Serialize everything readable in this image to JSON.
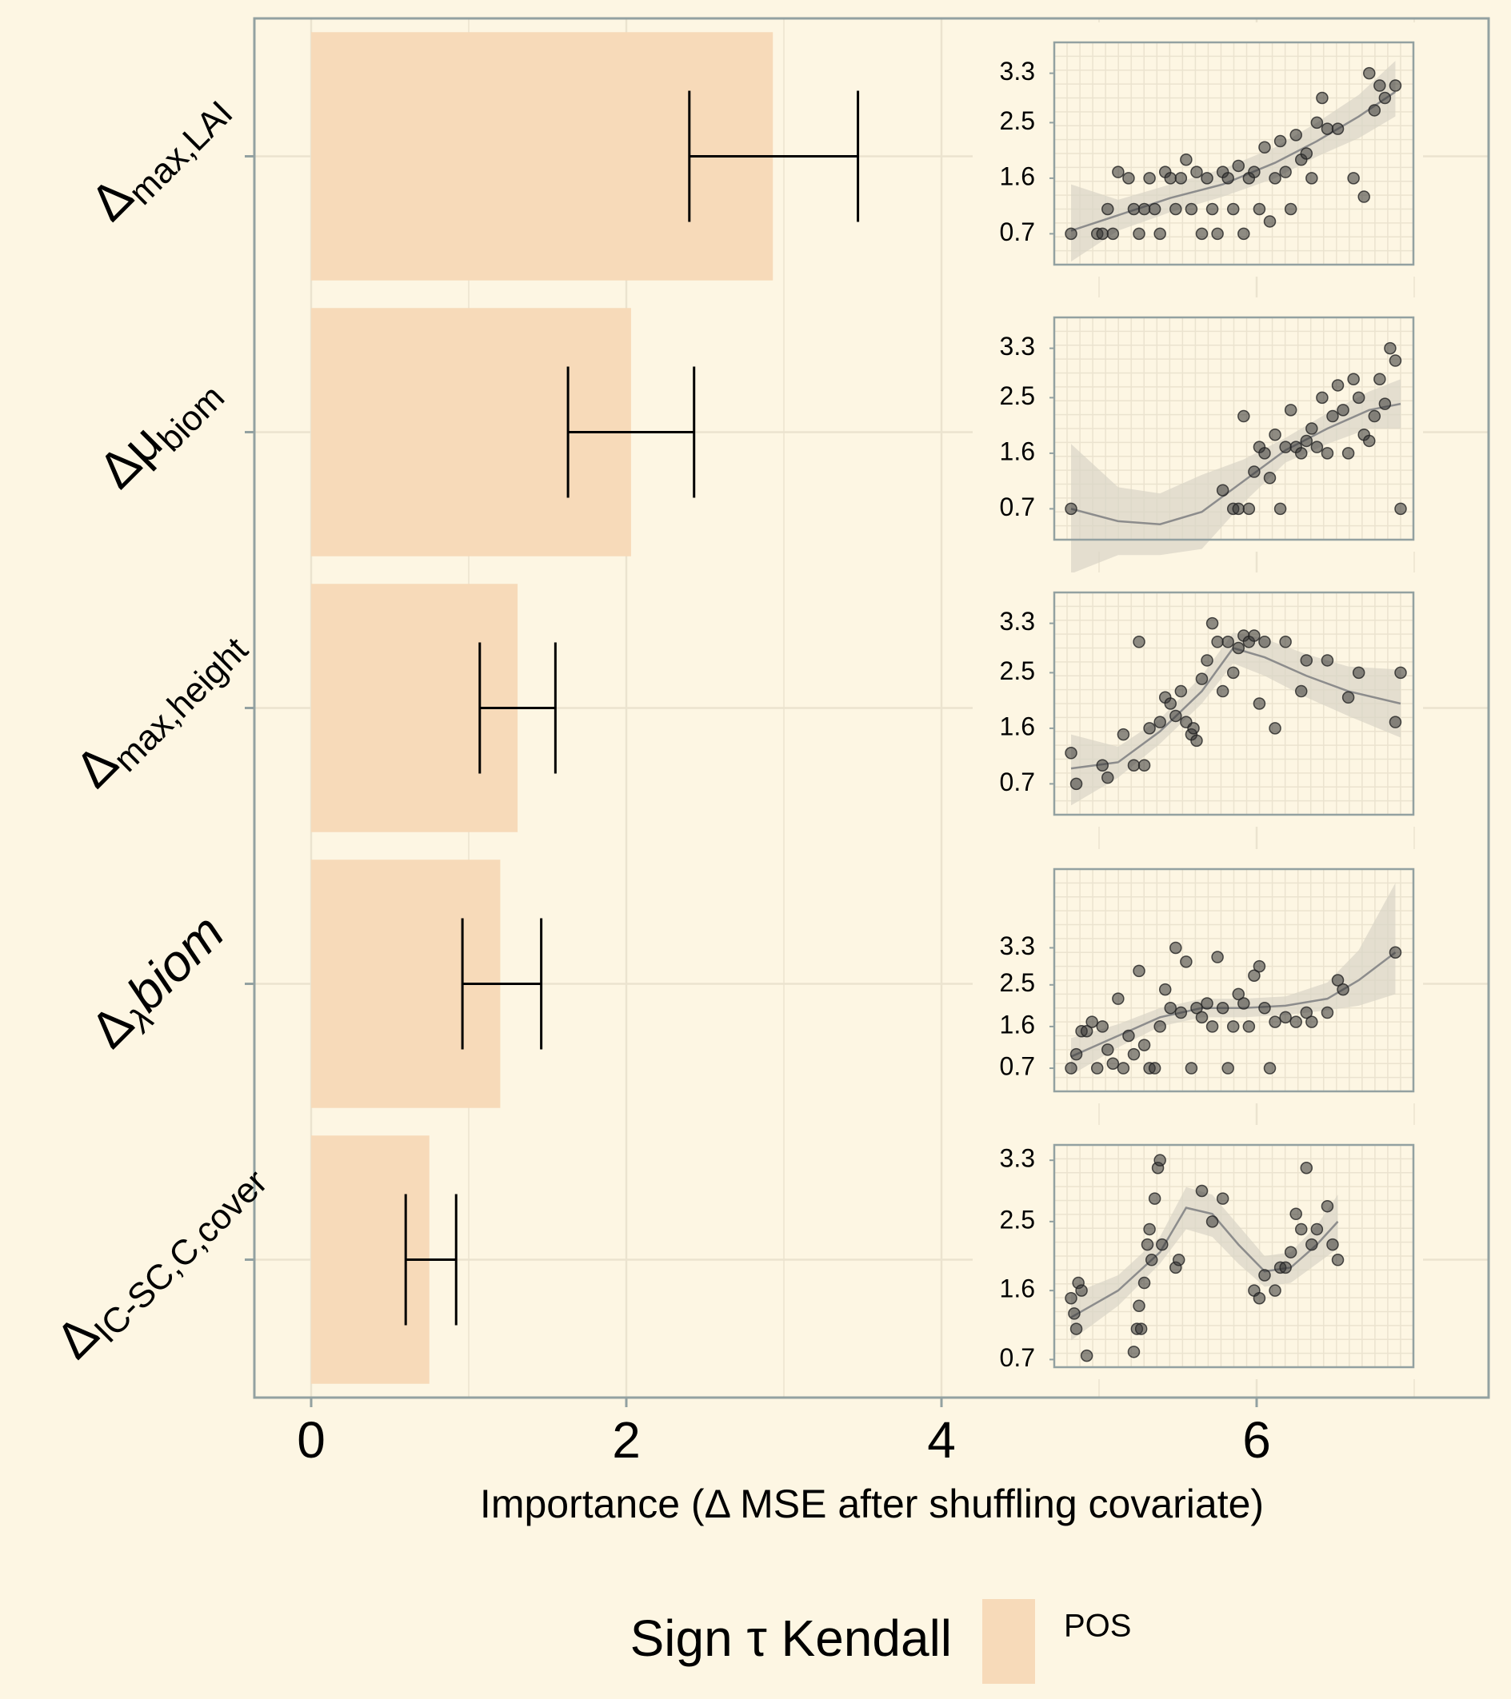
{
  "colors": {
    "background": "#fdf6e3",
    "bar_fill": "#f7dab9",
    "panel_border": "#93a1a1",
    "grid": "#ebe3cf",
    "errorbar": "#000000",
    "point": "#333333",
    "smooth_line": "#8c8c8c",
    "ribbon": "#d8d4c6"
  },
  "chart_data": {
    "type": "bar",
    "orientation": "horizontal",
    "xlabel": "Importance (Δ MSE after shuffling covariate)",
    "xlim": [
      0,
      7.2
    ],
    "x_ticks": [
      "0",
      "2",
      "4",
      "6"
    ],
    "grid": true,
    "categories": [
      {
        "base": "Δ",
        "sub": "max,LAI",
        "italic": false
      },
      {
        "base": "Δμ",
        "sub": "biom",
        "italic": false
      },
      {
        "base": "Δ",
        "sub": "max,height",
        "italic": false
      },
      {
        "base": "Δ",
        "sub": "λ",
        "after": "biom",
        "italic": true
      },
      {
        "base": "Δ",
        "sub": "IC-SC,C,cover",
        "italic": false
      }
    ],
    "values": [
      2.93,
      2.03,
      1.31,
      1.2,
      0.75
    ],
    "error_low": [
      2.4,
      1.63,
      1.07,
      0.96,
      0.6
    ],
    "error_high": [
      3.47,
      2.43,
      1.55,
      1.46,
      0.92
    ],
    "sign": [
      "POS",
      "POS",
      "POS",
      "POS",
      "POS"
    ],
    "legend": {
      "title": "Sign τ Kendall",
      "items": [
        "POS"
      ],
      "position": "bottom"
    }
  },
  "insets": [
    {
      "y_ticks": [
        "3.3",
        "2.5",
        "1.6",
        "0.7"
      ],
      "ylim": [
        0.2,
        3.8
      ],
      "points": [
        [
          4.75,
          0.7
        ],
        [
          5.0,
          0.7
        ],
        [
          5.05,
          0.7
        ],
        [
          5.1,
          1.1
        ],
        [
          5.15,
          0.7
        ],
        [
          5.2,
          1.7
        ],
        [
          5.3,
          1.6
        ],
        [
          5.35,
          1.1
        ],
        [
          5.4,
          0.7
        ],
        [
          5.45,
          1.1
        ],
        [
          5.5,
          1.6
        ],
        [
          5.55,
          1.1
        ],
        [
          5.6,
          0.7
        ],
        [
          5.65,
          1.7
        ],
        [
          5.7,
          1.6
        ],
        [
          5.75,
          1.1
        ],
        [
          5.8,
          1.6
        ],
        [
          5.85,
          1.9
        ],
        [
          5.9,
          1.1
        ],
        [
          5.95,
          1.7
        ],
        [
          6.0,
          0.7
        ],
        [
          6.05,
          1.6
        ],
        [
          6.1,
          1.1
        ],
        [
          6.15,
          0.7
        ],
        [
          6.2,
          1.7
        ],
        [
          6.25,
          1.6
        ],
        [
          6.3,
          1.1
        ],
        [
          6.35,
          1.8
        ],
        [
          6.4,
          0.7
        ],
        [
          6.45,
          1.6
        ],
        [
          6.5,
          1.7
        ],
        [
          6.55,
          1.1
        ],
        [
          6.6,
          2.1
        ],
        [
          6.65,
          0.9
        ],
        [
          6.7,
          1.6
        ],
        [
          6.75,
          2.2
        ],
        [
          6.8,
          1.7
        ],
        [
          6.85,
          1.1
        ],
        [
          6.9,
          2.3
        ],
        [
          6.95,
          1.9
        ],
        [
          7.0,
          2.0
        ],
        [
          7.05,
          1.6
        ],
        [
          7.1,
          2.5
        ],
        [
          7.15,
          2.9
        ],
        [
          7.2,
          2.4
        ],
        [
          7.3,
          2.4
        ],
        [
          7.45,
          1.6
        ],
        [
          7.55,
          1.3
        ],
        [
          7.6,
          3.3
        ],
        [
          7.65,
          2.7
        ],
        [
          7.7,
          3.1
        ],
        [
          7.75,
          2.9
        ],
        [
          7.85,
          3.1
        ]
      ],
      "curve": [
        [
          4.75,
          0.75
        ],
        [
          5.2,
          1.0
        ],
        [
          5.7,
          1.28
        ],
        [
          6.2,
          1.5
        ],
        [
          6.7,
          1.85
        ],
        [
          7.1,
          2.2
        ],
        [
          7.5,
          2.6
        ],
        [
          7.85,
          3.0
        ]
      ],
      "band": [
        [
          4.75,
          0.25,
          1.5
        ],
        [
          5.2,
          0.75,
          1.25
        ],
        [
          5.7,
          1.05,
          1.5
        ],
        [
          6.2,
          1.3,
          1.75
        ],
        [
          6.7,
          1.6,
          2.1
        ],
        [
          7.1,
          1.95,
          2.5
        ],
        [
          7.5,
          2.25,
          2.95
        ],
        [
          7.85,
          2.6,
          3.5
        ]
      ]
    },
    {
      "y_ticks": [
        "3.3",
        "2.5",
        "1.6",
        "0.7"
      ],
      "ylim": [
        0.2,
        3.8
      ],
      "points": [
        [
          4.75,
          0.7
        ],
        [
          6.2,
          1.0
        ],
        [
          6.3,
          0.7
        ],
        [
          6.35,
          0.7
        ],
        [
          6.4,
          2.2
        ],
        [
          6.45,
          0.7
        ],
        [
          6.5,
          1.3
        ],
        [
          6.55,
          1.7
        ],
        [
          6.6,
          1.6
        ],
        [
          6.65,
          1.2
        ],
        [
          6.7,
          1.9
        ],
        [
          6.75,
          0.7
        ],
        [
          6.8,
          1.7
        ],
        [
          6.85,
          2.3
        ],
        [
          6.9,
          1.7
        ],
        [
          6.95,
          1.6
        ],
        [
          7.0,
          1.8
        ],
        [
          7.05,
          2.0
        ],
        [
          7.1,
          1.7
        ],
        [
          7.15,
          2.5
        ],
        [
          7.2,
          1.6
        ],
        [
          7.25,
          2.2
        ],
        [
          7.3,
          2.7
        ],
        [
          7.35,
          2.3
        ],
        [
          7.4,
          1.6
        ],
        [
          7.45,
          2.8
        ],
        [
          7.5,
          2.5
        ],
        [
          7.55,
          1.9
        ],
        [
          7.6,
          1.8
        ],
        [
          7.65,
          2.2
        ],
        [
          7.7,
          2.8
        ],
        [
          7.75,
          2.4
        ],
        [
          7.8,
          3.3
        ],
        [
          7.85,
          3.1
        ],
        [
          7.9,
          0.7
        ]
      ],
      "curve": [
        [
          4.75,
          0.7
        ],
        [
          5.2,
          0.5
        ],
        [
          5.6,
          0.45
        ],
        [
          6.0,
          0.65
        ],
        [
          6.4,
          1.15
        ],
        [
          6.8,
          1.65
        ],
        [
          7.2,
          2.0
        ],
        [
          7.6,
          2.3
        ],
        [
          7.9,
          2.4
        ]
      ],
      "band": [
        [
          4.75,
          -0.35,
          1.75
        ],
        [
          5.2,
          -0.05,
          1.05
        ],
        [
          5.6,
          -0.05,
          0.95
        ],
        [
          6.0,
          0.05,
          1.25
        ],
        [
          6.4,
          0.8,
          1.5
        ],
        [
          6.8,
          1.45,
          1.85
        ],
        [
          7.2,
          1.75,
          2.25
        ],
        [
          7.6,
          2.0,
          2.6
        ],
        [
          7.9,
          2.0,
          2.8
        ]
      ]
    },
    {
      "y_ticks": [
        "3.3",
        "2.5",
        "1.6",
        "0.7"
      ],
      "ylim": [
        0.2,
        3.8
      ],
      "points": [
        [
          4.75,
          1.2
        ],
        [
          4.8,
          0.7
        ],
        [
          5.05,
          1.0
        ],
        [
          5.1,
          0.8
        ],
        [
          5.25,
          1.5
        ],
        [
          5.35,
          1.0
        ],
        [
          5.4,
          3.0
        ],
        [
          5.45,
          1.0
        ],
        [
          5.5,
          1.6
        ],
        [
          5.6,
          1.7
        ],
        [
          5.65,
          2.1
        ],
        [
          5.7,
          2.0
        ],
        [
          5.75,
          1.8
        ],
        [
          5.8,
          2.2
        ],
        [
          5.85,
          1.7
        ],
        [
          5.9,
          1.5
        ],
        [
          5.92,
          1.6
        ],
        [
          5.95,
          1.4
        ],
        [
          6.0,
          2.4
        ],
        [
          6.05,
          2.7
        ],
        [
          6.1,
          3.3
        ],
        [
          6.15,
          3.0
        ],
        [
          6.2,
          2.2
        ],
        [
          6.25,
          3.0
        ],
        [
          6.3,
          2.5
        ],
        [
          6.35,
          2.9
        ],
        [
          6.4,
          3.1
        ],
        [
          6.45,
          3.0
        ],
        [
          6.5,
          3.1
        ],
        [
          6.55,
          2.0
        ],
        [
          6.6,
          3.0
        ],
        [
          6.7,
          1.6
        ],
        [
          6.8,
          3.0
        ],
        [
          6.95,
          2.2
        ],
        [
          7.0,
          2.7
        ],
        [
          7.2,
          2.7
        ],
        [
          7.4,
          2.1
        ],
        [
          7.5,
          2.5
        ],
        [
          7.85,
          1.7
        ],
        [
          7.9,
          2.5
        ]
      ],
      "curve": [
        [
          4.75,
          0.95
        ],
        [
          5.2,
          1.05
        ],
        [
          5.6,
          1.55
        ],
        [
          6.0,
          2.2
        ],
        [
          6.3,
          2.9
        ],
        [
          6.6,
          2.75
        ],
        [
          7.0,
          2.45
        ],
        [
          7.4,
          2.2
        ],
        [
          7.9,
          2.0
        ]
      ],
      "band": [
        [
          4.75,
          0.35,
          1.5
        ],
        [
          5.2,
          0.8,
          1.3
        ],
        [
          5.6,
          1.35,
          1.75
        ],
        [
          6.0,
          2.0,
          2.45
        ],
        [
          6.3,
          2.65,
          3.15
        ],
        [
          6.6,
          2.45,
          3.05
        ],
        [
          7.0,
          2.1,
          2.8
        ],
        [
          7.4,
          1.8,
          2.6
        ],
        [
          7.9,
          1.45,
          2.55
        ]
      ]
    },
    {
      "y_ticks": [
        "3.3",
        "2.5",
        "1.6",
        "0.7"
      ],
      "ylim": [
        0.2,
        5.0
      ],
      "points": [
        [
          4.75,
          0.7
        ],
        [
          4.8,
          1.0
        ],
        [
          4.85,
          1.5
        ],
        [
          4.9,
          1.5
        ],
        [
          4.95,
          1.7
        ],
        [
          5.0,
          0.7
        ],
        [
          5.05,
          1.6
        ],
        [
          5.1,
          1.1
        ],
        [
          5.15,
          0.8
        ],
        [
          5.2,
          2.2
        ],
        [
          5.25,
          0.7
        ],
        [
          5.3,
          1.4
        ],
        [
          5.35,
          1.0
        ],
        [
          5.4,
          2.8
        ],
        [
          5.45,
          1.2
        ],
        [
          5.5,
          0.7
        ],
        [
          5.55,
          0.7
        ],
        [
          5.6,
          1.6
        ],
        [
          5.65,
          2.4
        ],
        [
          5.7,
          2.0
        ],
        [
          5.75,
          3.3
        ],
        [
          5.8,
          1.9
        ],
        [
          5.85,
          3.0
        ],
        [
          5.9,
          0.7
        ],
        [
          5.95,
          2.0
        ],
        [
          6.0,
          1.8
        ],
        [
          6.05,
          2.1
        ],
        [
          6.1,
          1.6
        ],
        [
          6.15,
          3.1
        ],
        [
          6.2,
          2.0
        ],
        [
          6.25,
          0.7
        ],
        [
          6.3,
          1.6
        ],
        [
          6.35,
          2.3
        ],
        [
          6.4,
          2.1
        ],
        [
          6.45,
          1.6
        ],
        [
          6.5,
          2.7
        ],
        [
          6.55,
          2.9
        ],
        [
          6.6,
          2.0
        ],
        [
          6.65,
          0.7
        ],
        [
          6.7,
          1.7
        ],
        [
          6.8,
          1.8
        ],
        [
          6.9,
          1.7
        ],
        [
          7.0,
          1.9
        ],
        [
          7.05,
          1.7
        ],
        [
          7.2,
          1.9
        ],
        [
          7.3,
          2.6
        ],
        [
          7.35,
          2.4
        ],
        [
          7.85,
          3.2
        ]
      ],
      "curve": [
        [
          4.75,
          0.95
        ],
        [
          5.2,
          1.4
        ],
        [
          5.6,
          1.8
        ],
        [
          6.0,
          2.0
        ],
        [
          6.4,
          2.0
        ],
        [
          6.8,
          2.05
        ],
        [
          7.2,
          2.2
        ],
        [
          7.5,
          2.6
        ],
        [
          7.85,
          3.2
        ]
      ],
      "band": [
        [
          4.75,
          0.55,
          1.35
        ],
        [
          5.2,
          1.15,
          1.65
        ],
        [
          5.6,
          1.6,
          2.0
        ],
        [
          6.0,
          1.8,
          2.2
        ],
        [
          6.4,
          1.8,
          2.2
        ],
        [
          6.8,
          1.85,
          2.25
        ],
        [
          7.2,
          1.95,
          2.55
        ],
        [
          7.5,
          2.05,
          3.25
        ],
        [
          7.85,
          2.3,
          4.7
        ]
      ]
    },
    {
      "y_ticks": [
        "3.3",
        "2.5",
        "1.6",
        "0.7"
      ],
      "ylim": [
        0.6,
        3.5
      ],
      "points": [
        [
          4.75,
          1.5
        ],
        [
          4.78,
          1.3
        ],
        [
          4.8,
          1.1
        ],
        [
          4.82,
          1.7
        ],
        [
          4.85,
          1.6
        ],
        [
          4.9,
          0.75
        ],
        [
          5.35,
          0.8
        ],
        [
          5.38,
          1.1
        ],
        [
          5.4,
          1.4
        ],
        [
          5.42,
          1.1
        ],
        [
          5.45,
          1.7
        ],
        [
          5.48,
          2.2
        ],
        [
          5.5,
          2.4
        ],
        [
          5.52,
          2.0
        ],
        [
          5.55,
          2.8
        ],
        [
          5.58,
          3.2
        ],
        [
          5.6,
          3.3
        ],
        [
          5.62,
          2.2
        ],
        [
          5.75,
          1.9
        ],
        [
          5.78,
          2.0
        ],
        [
          6.0,
          2.9
        ],
        [
          6.1,
          2.5
        ],
        [
          6.2,
          2.8
        ],
        [
          6.5,
          1.6
        ],
        [
          6.55,
          1.5
        ],
        [
          6.6,
          1.8
        ],
        [
          6.7,
          1.6
        ],
        [
          6.75,
          1.9
        ],
        [
          6.8,
          1.9
        ],
        [
          6.85,
          2.1
        ],
        [
          6.9,
          2.6
        ],
        [
          6.95,
          2.4
        ],
        [
          7.0,
          3.2
        ],
        [
          7.05,
          2.2
        ],
        [
          7.1,
          2.4
        ],
        [
          7.2,
          2.7
        ],
        [
          7.25,
          2.2
        ],
        [
          7.3,
          2.0
        ]
      ],
      "curve": [
        [
          4.75,
          1.25
        ],
        [
          5.2,
          1.6
        ],
        [
          5.6,
          2.1
        ],
        [
          5.85,
          2.68
        ],
        [
          6.1,
          2.6
        ],
        [
          6.35,
          2.2
        ],
        [
          6.6,
          1.85
        ],
        [
          6.85,
          1.9
        ],
        [
          7.1,
          2.2
        ],
        [
          7.3,
          2.5
        ]
      ],
      "band": [
        [
          4.75,
          0.95,
          1.55
        ],
        [
          5.2,
          1.4,
          1.8
        ],
        [
          5.6,
          1.95,
          2.3
        ],
        [
          5.85,
          2.4,
          2.95
        ],
        [
          6.1,
          2.3,
          2.85
        ],
        [
          6.35,
          1.95,
          2.45
        ],
        [
          6.6,
          1.65,
          2.05
        ],
        [
          6.85,
          1.7,
          2.1
        ],
        [
          7.1,
          1.95,
          2.45
        ],
        [
          7.3,
          2.15,
          2.85
        ]
      ]
    }
  ]
}
